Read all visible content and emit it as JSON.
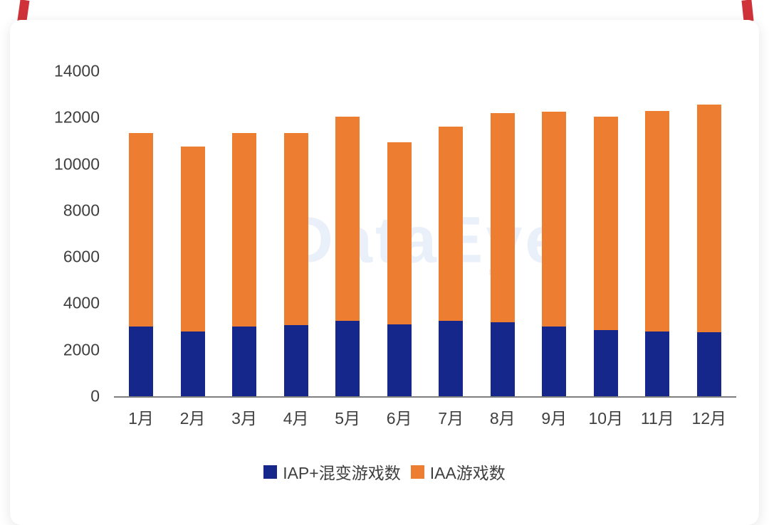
{
  "watermark": "DataEye",
  "page": {
    "accent_color": "#cf3339"
  },
  "chart_data": {
    "type": "bar",
    "stacked": true,
    "title": "",
    "xlabel": "",
    "ylabel": "",
    "categories": [
      "1月",
      "2月",
      "3月",
      "4月",
      "5月",
      "6月",
      "7月",
      "8月",
      "9月",
      "10月",
      "11月",
      "12月"
    ],
    "series": [
      {
        "name": "IAP+混变游戏数",
        "color": "#16278C",
        "values": [
          3000,
          2800,
          3000,
          3050,
          3250,
          3100,
          3250,
          3200,
          3000,
          2850,
          2800,
          2750
        ]
      },
      {
        "name": "IAA游戏数",
        "color": "#ED7D31",
        "values": [
          8350,
          7950,
          8350,
          8300,
          8800,
          7850,
          8350,
          9000,
          9250,
          9200,
          9500,
          9800
        ]
      }
    ],
    "totals": [
      11350,
      10750,
      11350,
      11350,
      12050,
      10950,
      11600,
      12200,
      12250,
      12050,
      12300,
      12550
    ],
    "ylim": [
      0,
      14000
    ],
    "ytick_step": 2000,
    "ytick_labels": [
      "0",
      "2000",
      "4000",
      "6000",
      "8000",
      "10000",
      "12000",
      "14000"
    ],
    "grid": false,
    "legend_position": "bottom"
  }
}
